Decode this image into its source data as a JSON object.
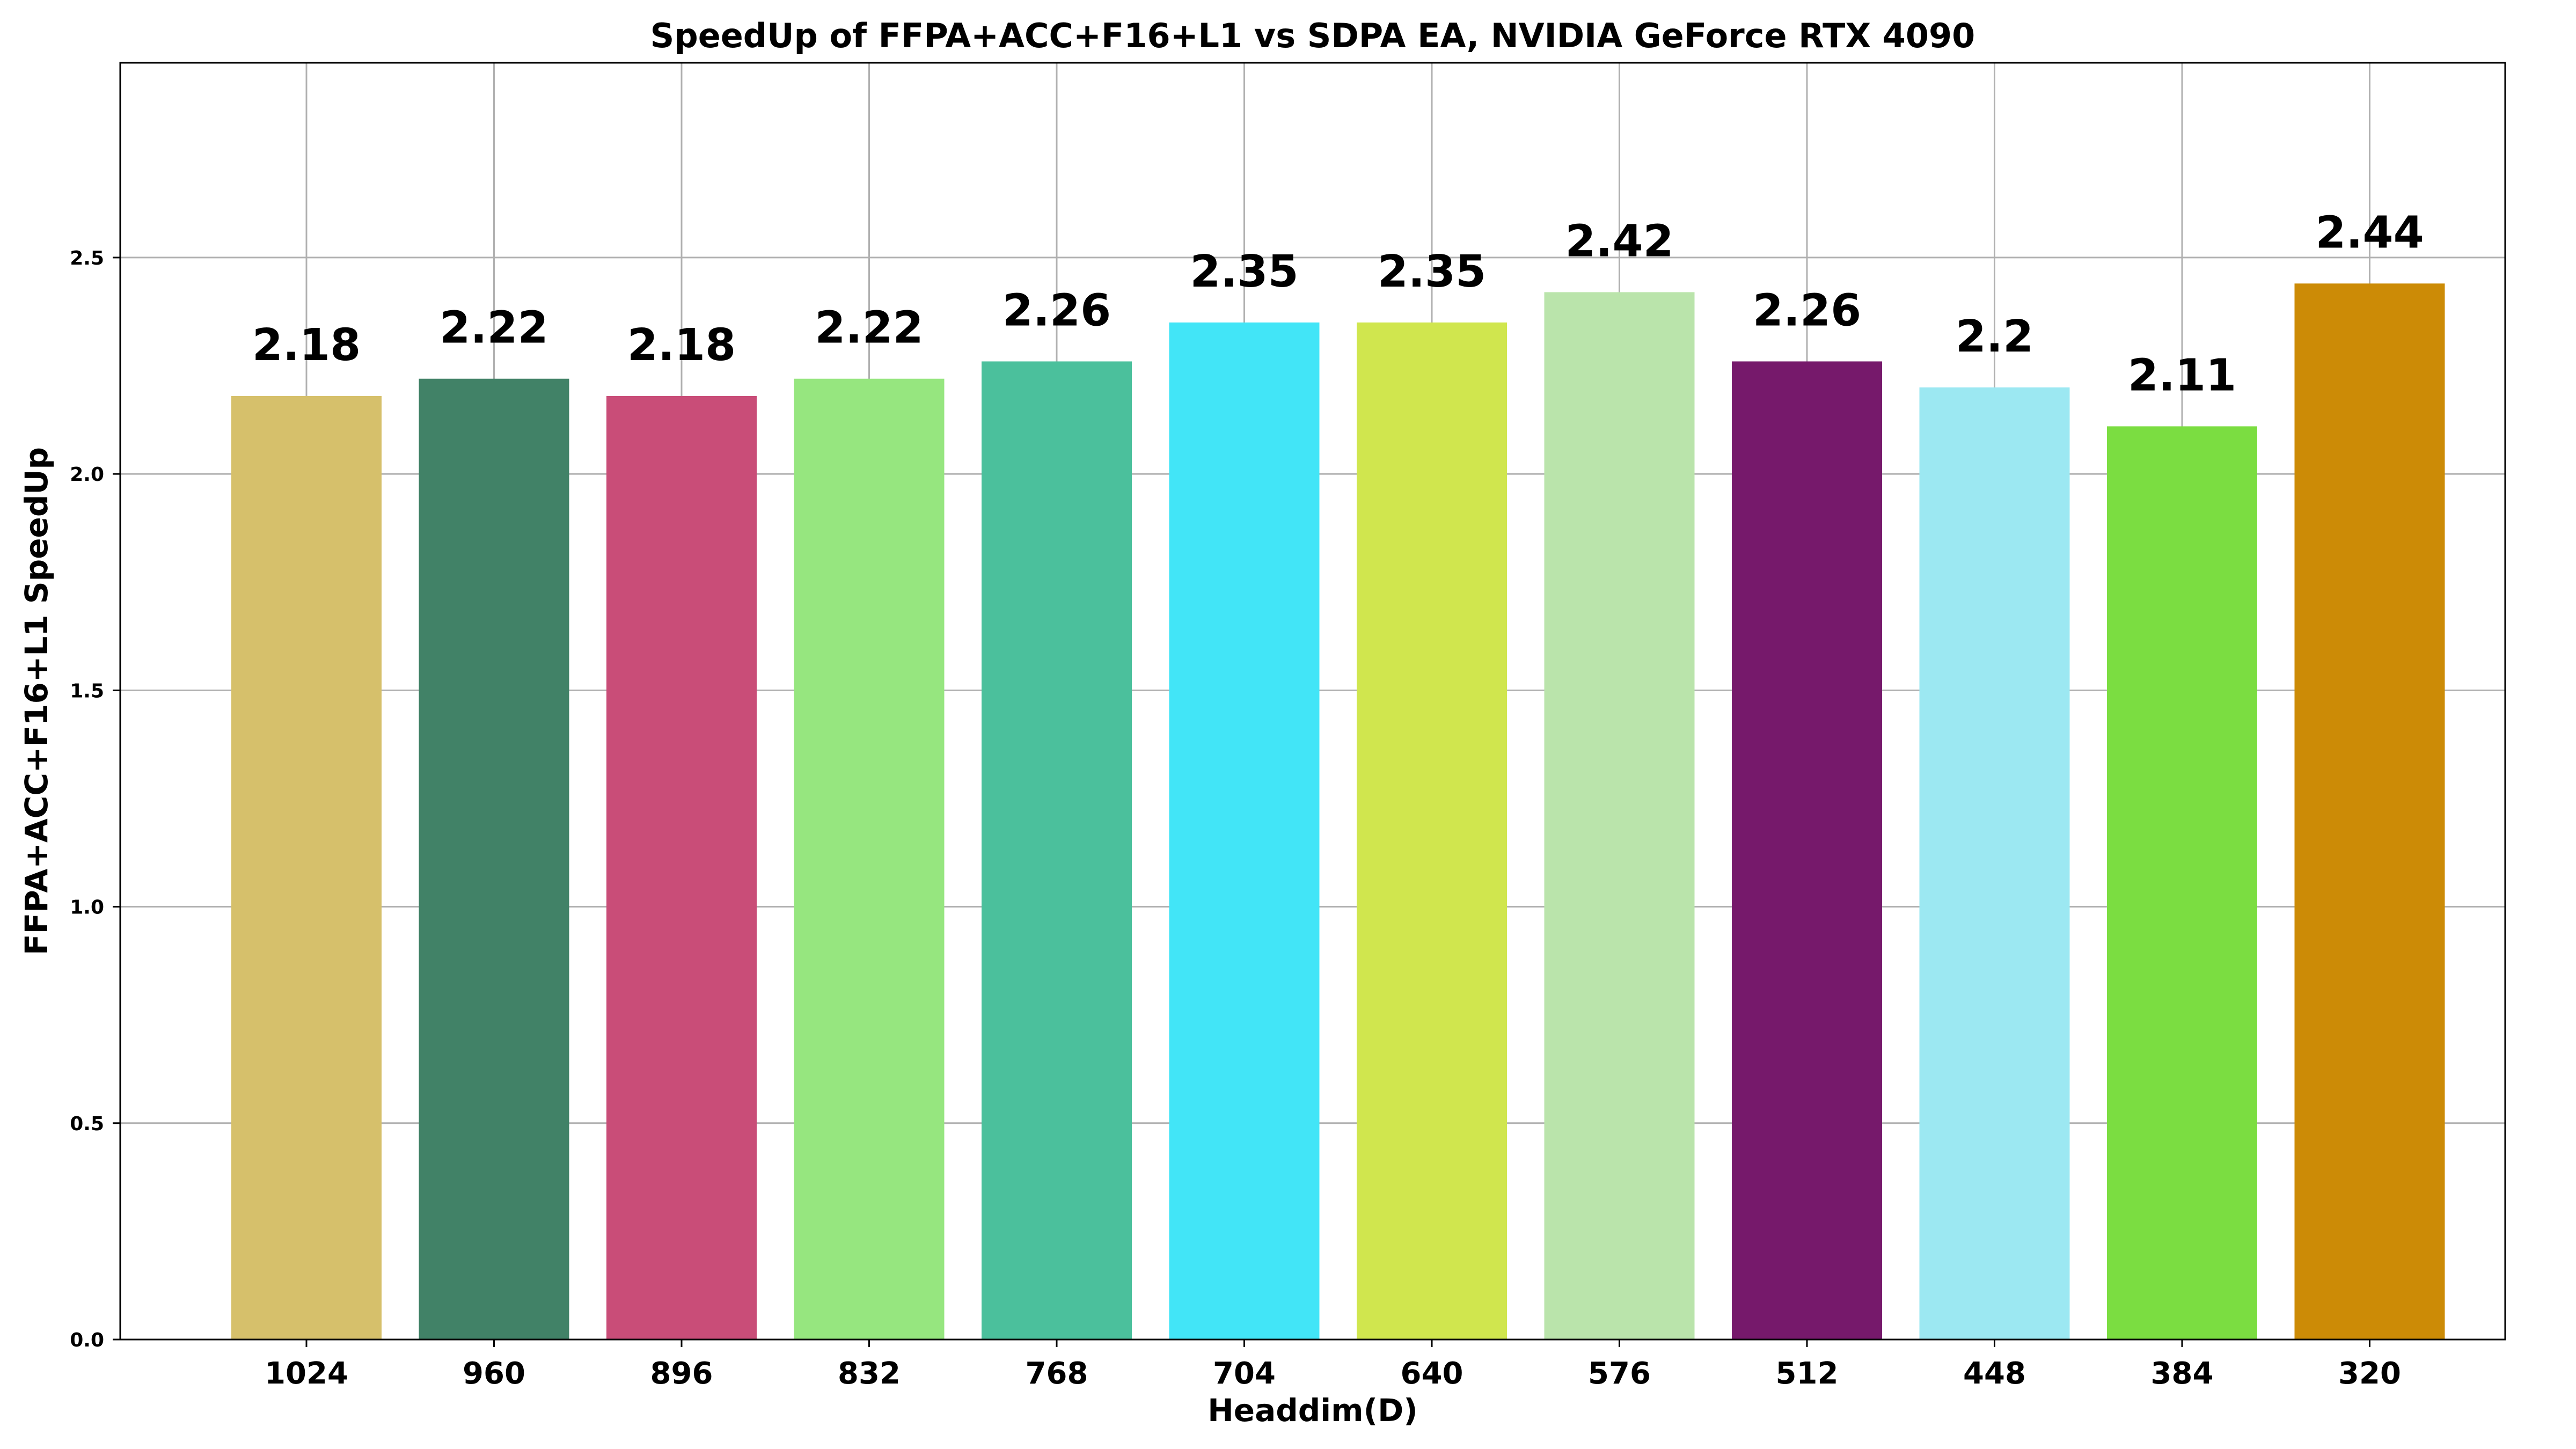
{
  "chart_data": {
    "type": "bar",
    "title": "SpeedUp of FFPA+ACC+F16+L1 vs SDPA EA, NVIDIA GeForce RTX 4090",
    "xlabel": "Headdim(D)",
    "ylabel": "FFPA+ACC+F16+L1 SpeedUp",
    "categories": [
      "1024",
      "960",
      "896",
      "832",
      "768",
      "704",
      "640",
      "576",
      "512",
      "448",
      "384",
      "320"
    ],
    "values": [
      2.18,
      2.22,
      2.18,
      2.22,
      2.26,
      2.35,
      2.35,
      2.42,
      2.26,
      2.2,
      2.11,
      2.44
    ],
    "data_labels": [
      "2.18",
      "2.22",
      "2.18",
      "2.22",
      "2.26",
      "2.35",
      "2.35",
      "2.42",
      "2.26",
      "2.2",
      "2.11",
      "2.44"
    ],
    "colors": [
      "#d6c06b",
      "#418267",
      "#c94d78",
      "#96e67f",
      "#4bc09c",
      "#42e5f7",
      "#d0e64e",
      "#bae4ab",
      "#76196b",
      "#9ce8f2",
      "#7bdd41",
      "#cc8b06"
    ],
    "ylim": [
      0,
      2.95
    ],
    "yticks": [
      0.0,
      0.5,
      1.0,
      1.5,
      2.0,
      2.5
    ],
    "ytick_labels": [
      "0.0",
      "0.5",
      "1.0",
      "1.5",
      "2.0",
      "2.5"
    ],
    "grid": true
  }
}
